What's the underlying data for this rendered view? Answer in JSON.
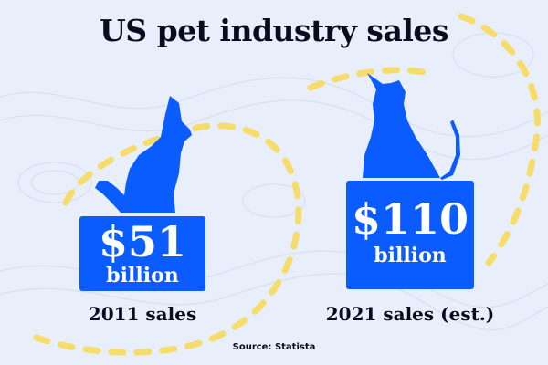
{
  "title": "US pet industry sales",
  "source": "Source: Statista",
  "colors": {
    "background": "#e8effb",
    "accent": "#0a5cff",
    "dash": "#f5dc6b",
    "text": "#0b0b1f"
  },
  "icons": {
    "dog": "dog-icon",
    "cat": "cat-icon"
  },
  "chart_data": {
    "type": "bar",
    "title": "US pet industry sales",
    "categories": [
      "2011 sales",
      "2021 sales (est.)"
    ],
    "values": [
      51,
      110
    ],
    "value_labels": [
      {
        "amount": "$51",
        "unit": "billion"
      },
      {
        "amount": "$110",
        "unit": "billion"
      }
    ],
    "xlabel": "",
    "ylabel": "",
    "grid": false,
    "legend": "none"
  }
}
